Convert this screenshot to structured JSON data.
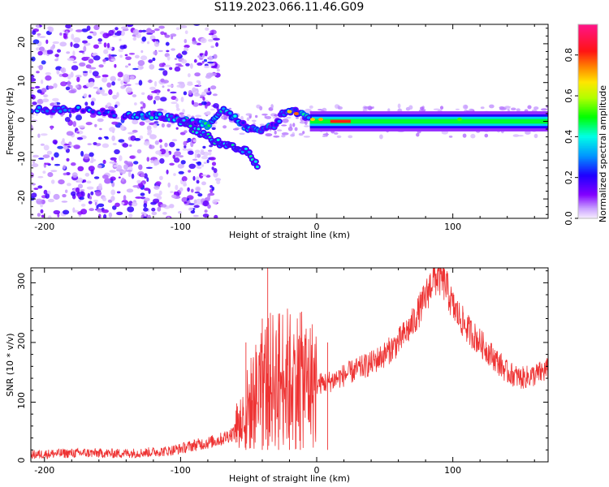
{
  "title": "S119.2023.066.11.46.G09",
  "chart_data": [
    {
      "type": "heatmap",
      "xlabel": "Height of straight line (km)",
      "ylabel": "Frequency (Hz)",
      "xlim": [
        -210,
        170
      ],
      "ylim": [
        -25,
        25
      ],
      "xticks": [
        -200,
        -100,
        0,
        100
      ],
      "yticks": [
        -20,
        -10,
        0,
        10,
        20
      ],
      "colorbar": {
        "label": "Normalized spectral amplitude",
        "range": [
          0,
          0.95
        ],
        "ticks": [
          0.0,
          0.2,
          0.4,
          0.6,
          0.8
        ],
        "tick_labels": [
          "0.0",
          "0.2",
          "0.4",
          "0.6",
          "0.8"
        ]
      },
      "trace": [
        {
          "x": -210,
          "f": 3
        },
        {
          "x": -180,
          "f": 3
        },
        {
          "x": -170,
          "f": 3
        },
        {
          "x": -140,
          "f": 1.5
        },
        {
          "x": -120,
          "f": 1.5
        },
        {
          "x": -100,
          "f": 0.5
        },
        {
          "x": -80,
          "f": -1
        },
        {
          "x": -70,
          "f": 3
        },
        {
          "x": -60,
          "f": 1
        },
        {
          "x": -50,
          "f": -2
        },
        {
          "x": -40,
          "f": -2
        },
        {
          "x": -30,
          "f": -1
        },
        {
          "x": -25,
          "f": 2
        },
        {
          "x": -15,
          "f": 2.5
        },
        {
          "x": -5,
          "f": 0.5
        },
        {
          "x": 0,
          "f": 0.5
        },
        {
          "x": 50,
          "f": 0
        },
        {
          "x": 100,
          "f": 0
        },
        {
          "x": 170,
          "f": 0.5
        }
      ],
      "lower_branch": [
        {
          "x": -100,
          "f": 0
        },
        {
          "x": -90,
          "f": -2
        },
        {
          "x": -80,
          "f": -4
        },
        {
          "x": -70,
          "f": -6
        },
        {
          "x": -60,
          "f": -7
        },
        {
          "x": -50,
          "f": -8
        },
        {
          "x": -45,
          "f": -11
        }
      ]
    },
    {
      "type": "line",
      "xlabel": "Height of straight line (km)",
      "ylabel": "SNR (10 * v/v)",
      "xlim": [
        -210,
        170
      ],
      "ylim": [
        0,
        325
      ],
      "xticks": [
        -200,
        -100,
        0,
        100
      ],
      "yticks": [
        0,
        100,
        200,
        300
      ],
      "series": [
        {
          "color": "#ee3333",
          "x": [
            -210,
            -190,
            -170,
            -150,
            -130,
            -110,
            -100,
            -90,
            -80,
            -70,
            -60,
            -55,
            -50,
            -45,
            -40,
            -35,
            -30,
            -25,
            -20,
            -15,
            -10,
            0,
            10,
            20,
            30,
            40,
            50,
            60,
            70,
            80,
            85,
            90,
            95,
            100,
            110,
            120,
            130,
            140,
            150,
            160,
            170
          ],
          "y": [
            12,
            14,
            15,
            14,
            15,
            18,
            22,
            28,
            32,
            38,
            50,
            70,
            90,
            110,
            130,
            135,
            140,
            145,
            140,
            140,
            135,
            130,
            135,
            145,
            155,
            165,
            180,
            200,
            230,
            275,
            305,
            310,
            295,
            260,
            225,
            200,
            175,
            150,
            140,
            145,
            155
          ]
        }
      ],
      "spikes": [
        {
          "x": -36,
          "y": 325
        },
        {
          "x": -40,
          "y": 240
        },
        {
          "x": -28,
          "y": 215
        },
        {
          "x": -12,
          "y": 250
        },
        {
          "x": -20,
          "y": 210
        },
        {
          "x": 8,
          "y": 200
        },
        {
          "x": -52,
          "y": 200
        }
      ]
    }
  ]
}
